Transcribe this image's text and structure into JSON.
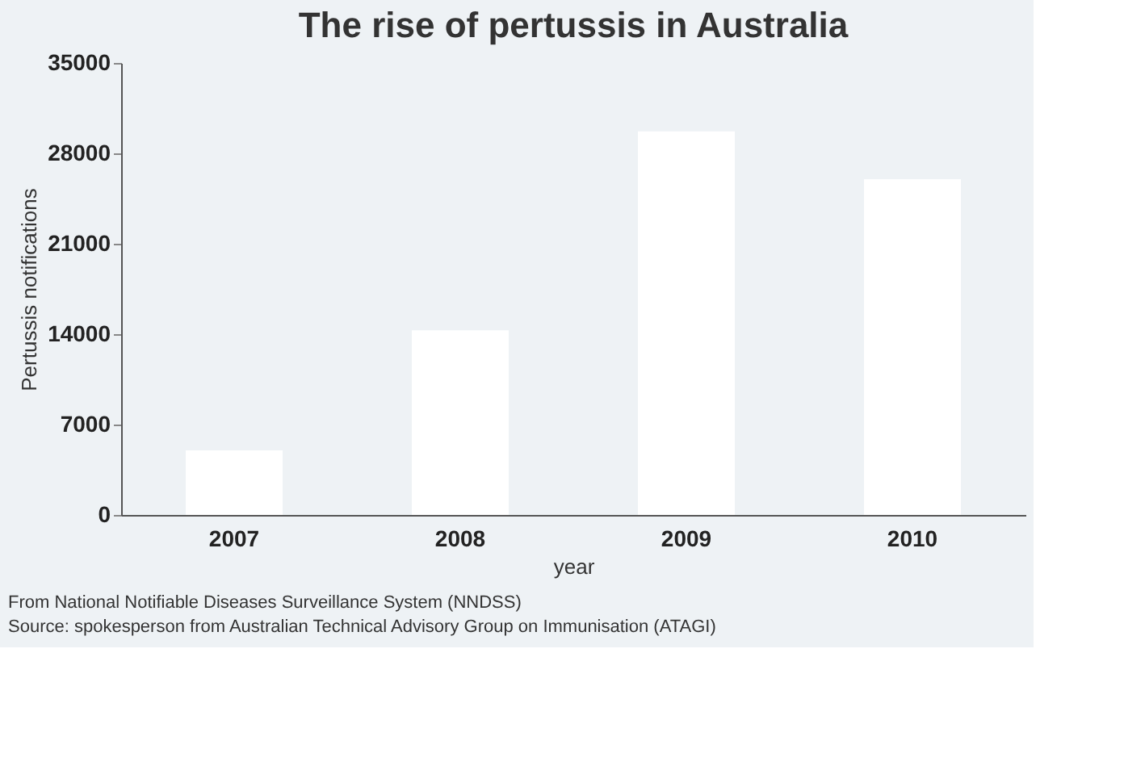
{
  "chart_data": {
    "type": "bar",
    "title": "The rise of pertussis in Australia",
    "categories": [
      "2007",
      "2008",
      "2009",
      "2010"
    ],
    "values": [
      5000,
      14300,
      29700,
      26000
    ],
    "color": "#ffffff",
    "xlabel": "year",
    "ylabel": "Pertussis notifications",
    "ylim": [
      0,
      35000
    ],
    "yticks": [
      0,
      7000,
      14000,
      21000,
      28000,
      35000
    ],
    "grid": false,
    "annotations": [
      "From National Notifiable Diseases Surveillance System (NNDSS)",
      "Source: spokesperson from Australian Technical Advisory Group on Immunisation (ATAGI)"
    ]
  }
}
